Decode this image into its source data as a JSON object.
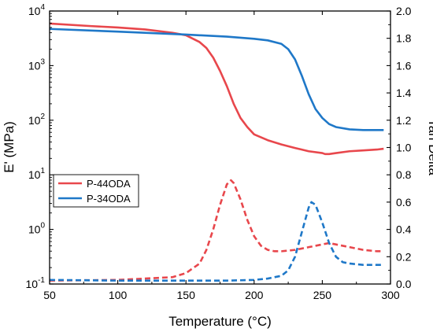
{
  "chart_data": {
    "type": "line",
    "xlabel": "Temperature (°C)",
    "ylabel_left": "E' (MPa)",
    "ylabel_right": "Tan Delta",
    "xlim": [
      50,
      300
    ],
    "ylim_left": [
      0.1,
      10000
    ],
    "ylim_right": [
      0.0,
      2.0
    ],
    "left_scale": "log",
    "x_ticks": [
      "50",
      "100",
      "150",
      "200",
      "250",
      "300"
    ],
    "x_tick_values": [
      50,
      100,
      150,
      200,
      250,
      300
    ],
    "y_left_ticks": [
      {
        "base": "10",
        "exp": "-1",
        "value": 0.1
      },
      {
        "base": "10",
        "exp": "0",
        "value": 1
      },
      {
        "base": "10",
        "exp": "1",
        "value": 10
      },
      {
        "base": "10",
        "exp": "2",
        "value": 100
      },
      {
        "base": "10",
        "exp": "3",
        "value": 1000
      },
      {
        "base": "10",
        "exp": "4",
        "value": 10000
      }
    ],
    "y_right_ticks": [
      "0.0",
      "0.2",
      "0.4",
      "0.6",
      "0.8",
      "1.0",
      "1.2",
      "1.4",
      "1.6",
      "1.8",
      "2.0"
    ],
    "y_right_tick_values": [
      0.0,
      0.2,
      0.4,
      0.6,
      0.8,
      1.0,
      1.2,
      1.4,
      1.6,
      1.8,
      2.0
    ],
    "legend": {
      "placement": "center-left",
      "entries": [
        "P-44ODA",
        "P-34ODA"
      ]
    },
    "grid": false,
    "series": [
      {
        "name": "P-44ODA",
        "axis": "left",
        "style": "solid",
        "color": "#e8474c",
        "x": [
          50,
          80,
          100,
          120,
          140,
          150,
          160,
          165,
          170,
          175,
          180,
          185,
          190,
          195,
          200,
          210,
          220,
          230,
          240,
          250,
          252,
          255,
          260,
          270,
          280,
          290,
          295
        ],
        "y": [
          5900,
          5300,
          5000,
          4600,
          4000,
          3600,
          2700,
          2100,
          1400,
          800,
          420,
          200,
          110,
          75,
          55,
          43,
          36,
          31,
          27,
          25,
          24,
          24,
          25,
          27,
          28,
          29,
          30
        ]
      },
      {
        "name": "P-34ODA",
        "axis": "left",
        "style": "solid",
        "color": "#1f78c8",
        "x": [
          50,
          100,
          150,
          180,
          200,
          210,
          220,
          225,
          230,
          235,
          240,
          245,
          250,
          255,
          260,
          270,
          280,
          290,
          295
        ],
        "y": [
          4700,
          4200,
          3700,
          3400,
          3100,
          2900,
          2500,
          2000,
          1300,
          650,
          300,
          160,
          110,
          85,
          75,
          68,
          66,
          66,
          66
        ]
      },
      {
        "name": "P-44ODA",
        "axis": "right",
        "style": "dashed",
        "color": "#e8474c",
        "x": [
          50,
          100,
          140,
          150,
          160,
          165,
          170,
          175,
          180,
          183,
          185,
          190,
          195,
          200,
          205,
          210,
          215,
          220,
          230,
          240,
          250,
          255,
          260,
          270,
          280,
          290,
          295
        ],
        "y": [
          0.025,
          0.03,
          0.05,
          0.08,
          0.15,
          0.25,
          0.4,
          0.58,
          0.73,
          0.76,
          0.74,
          0.62,
          0.47,
          0.35,
          0.28,
          0.25,
          0.24,
          0.24,
          0.25,
          0.27,
          0.29,
          0.3,
          0.29,
          0.27,
          0.25,
          0.24,
          0.24
        ]
      },
      {
        "name": "P-34ODA",
        "axis": "right",
        "style": "dashed",
        "color": "#1f78c8",
        "x": [
          50,
          100,
          150,
          180,
          200,
          210,
          220,
          225,
          230,
          235,
          240,
          242,
          245,
          250,
          255,
          260,
          265,
          270,
          280,
          290,
          295
        ],
        "y": [
          0.03,
          0.025,
          0.025,
          0.025,
          0.03,
          0.04,
          0.06,
          0.1,
          0.2,
          0.38,
          0.56,
          0.6,
          0.58,
          0.45,
          0.3,
          0.2,
          0.16,
          0.15,
          0.14,
          0.14,
          0.14
        ]
      }
    ]
  }
}
